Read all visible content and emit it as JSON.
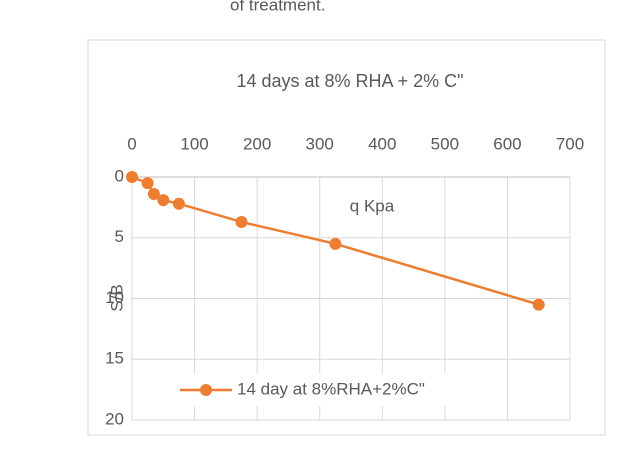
{
  "page_text": "of treatment.",
  "chart_data": {
    "type": "line",
    "title": "14 days at 8% RHA + 2% C\"",
    "x_label": "q Kpa",
    "y_label": "S/B",
    "x": [
      0,
      25,
      35,
      50,
      75,
      175,
      325,
      650
    ],
    "series": [
      {
        "name": "14 day at 8%RHA+2%C\"",
        "color": "#ed7d31",
        "values": [
          0,
          0.5,
          1.4,
          1.9,
          2.2,
          3.7,
          5.5,
          10.5
        ]
      }
    ],
    "xlim": [
      0,
      700
    ],
    "xticks": [
      0,
      100,
      200,
      300,
      400,
      500,
      600,
      700
    ],
    "ylim": [
      0,
      20
    ],
    "yticks": [
      0,
      5,
      10,
      15,
      20
    ],
    "y_reversed": true,
    "x_axis_position": "top",
    "grid": true,
    "legend": "lower-left"
  }
}
